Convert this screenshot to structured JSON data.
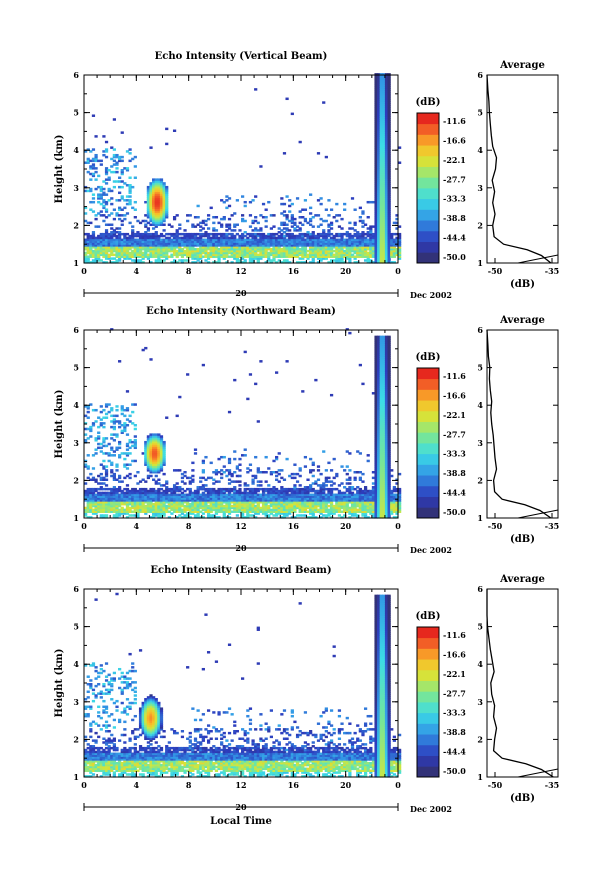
{
  "chart_data": [
    {
      "type": "heatmap",
      "title": "Echo Intensity (Vertical Beam)",
      "xlabel": "",
      "ylabel": "Height (km)",
      "xlim": [
        0,
        24
      ],
      "ylim": [
        1,
        6
      ],
      "x_ticks": [
        "0",
        "4",
        "8",
        "12",
        "16",
        "20",
        "0"
      ],
      "y_ticks": [
        "1",
        "2",
        "3",
        "4",
        "5",
        "6"
      ],
      "date_axis": {
        "label": "20",
        "month": "Dec 2002"
      },
      "colorbar": {
        "title": "(dB)",
        "levels": [
          "-11.6",
          "-16.6",
          "-22.1",
          "-27.7",
          "-33.3",
          "-38.8",
          "-44.4",
          "-50.0"
        ],
        "range": [
          -50.0,
          -11.6
        ]
      },
      "features": [
        {
          "desc": "low-level layer",
          "height_range": [
            1.2,
            1.8
          ],
          "time_range": [
            0,
            24
          ],
          "value": -30
        },
        {
          "desc": "strong echo",
          "time": 5.5,
          "height_range": [
            2.2,
            3.0
          ],
          "value": -12
        },
        {
          "desc": "tall column",
          "time": 22.7,
          "height_range": [
            1.0,
            6.0
          ],
          "value": -20
        }
      ],
      "profile": {
        "title": "Average",
        "xlabel": "(dB)",
        "x_ticks": [
          "-50",
          "-35"
        ],
        "xlim": [
          -50,
          -35
        ],
        "ylim": [
          1,
          6
        ],
        "heights": [
          1.0,
          1.2,
          1.35,
          1.5,
          1.7,
          2.0,
          2.3,
          2.6,
          2.9,
          3.2,
          3.5,
          3.8,
          4.1,
          4.4,
          4.7,
          5.0,
          5.3,
          5.6,
          6.0
        ],
        "values": [
          -36.5,
          -38.5,
          -41.5,
          -46.5,
          -48.5,
          -48.8,
          -48.3,
          -48.8,
          -48.4,
          -48.9,
          -48.2,
          -48.0,
          -48.8,
          -49.1,
          -49.3,
          -49.5,
          -49.6,
          -49.8,
          -50.0
        ]
      }
    },
    {
      "type": "heatmap",
      "title": "Echo Intensity (Northward Beam)",
      "xlabel": "",
      "ylabel": "Height (km)",
      "xlim": [
        0,
        24
      ],
      "ylim": [
        1,
        6
      ],
      "x_ticks": [
        "0",
        "4",
        "8",
        "12",
        "16",
        "20",
        "0"
      ],
      "y_ticks": [
        "1",
        "2",
        "3",
        "4",
        "5",
        "6"
      ],
      "date_axis": {
        "label": "20",
        "month": "Dec 2002"
      },
      "colorbar": {
        "title": "(dB)",
        "levels": [
          "-11.6",
          "-16.6",
          "-22.1",
          "-27.7",
          "-33.3",
          "-38.8",
          "-44.4",
          "-50.0"
        ],
        "range": [
          -50.0,
          -11.6
        ]
      },
      "features": [
        {
          "desc": "low-level layer",
          "height_range": [
            1.2,
            1.8
          ],
          "time_range": [
            0,
            24
          ],
          "value": -30
        },
        {
          "desc": "strong echo",
          "time": 5.3,
          "height_range": [
            2.4,
            3.0
          ],
          "value": -14
        },
        {
          "desc": "tall column",
          "time": 22.7,
          "height_range": [
            1.0,
            5.8
          ],
          "value": -20
        }
      ],
      "profile": {
        "title": "Average",
        "xlabel": "(dB)",
        "x_ticks": [
          "-50",
          "-35"
        ],
        "xlim": [
          -50,
          -35
        ],
        "ylim": [
          1,
          6
        ],
        "heights": [
          1.0,
          1.2,
          1.35,
          1.5,
          1.7,
          2.0,
          2.3,
          2.6,
          2.9,
          3.2,
          3.5,
          3.8,
          4.1,
          4.4,
          4.7,
          5.0,
          5.3,
          5.6,
          6.0
        ],
        "values": [
          -36.5,
          -38.8,
          -42.0,
          -46.8,
          -48.4,
          -48.6,
          -48.0,
          -48.3,
          -48.5,
          -48.7,
          -49.0,
          -49.2,
          -49.0,
          -49.3,
          -49.5,
          -49.4,
          -49.7,
          -49.8,
          -50.0
        ]
      }
    },
    {
      "type": "heatmap",
      "title": "Echo Intensity (Eastward Beam)",
      "xlabel": "Local Time",
      "ylabel": "Height (km)",
      "xlim": [
        0,
        24
      ],
      "ylim": [
        1,
        6
      ],
      "x_ticks": [
        "0",
        "4",
        "8",
        "12",
        "16",
        "20",
        "0"
      ],
      "y_ticks": [
        "1",
        "2",
        "3",
        "4",
        "5",
        "6"
      ],
      "date_axis": {
        "label": "20",
        "month": "Dec 2002"
      },
      "colorbar": {
        "title": "(dB)",
        "levels": [
          "-11.6",
          "-16.6",
          "-22.1",
          "-27.7",
          "-33.3",
          "-38.8",
          "-44.4",
          "-50.0"
        ],
        "range": [
          -50.0,
          -11.6
        ]
      },
      "features": [
        {
          "desc": "low-level layer",
          "height_range": [
            1.2,
            1.8
          ],
          "time_range": [
            0,
            24
          ],
          "value": -30
        },
        {
          "desc": "strong echo",
          "time": 5.0,
          "height_range": [
            2.2,
            2.9
          ],
          "value": -17
        },
        {
          "desc": "tall column",
          "time": 22.7,
          "height_range": [
            1.0,
            5.8
          ],
          "value": -20
        }
      ],
      "profile": {
        "title": "Average",
        "xlabel": "(dB)",
        "x_ticks": [
          "-50",
          "-35"
        ],
        "xlim": [
          -50,
          -35
        ],
        "ylim": [
          1,
          6
        ],
        "heights": [
          1.0,
          1.2,
          1.35,
          1.5,
          1.7,
          2.0,
          2.3,
          2.6,
          2.9,
          3.2,
          3.5,
          3.8,
          4.1,
          4.4,
          4.7,
          5.0,
          5.3,
          5.6,
          6.0
        ],
        "values": [
          -36.0,
          -38.5,
          -41.8,
          -46.8,
          -48.6,
          -48.4,
          -48.0,
          -48.6,
          -48.4,
          -49.0,
          -49.2,
          -48.5,
          -48.9,
          -49.3,
          -49.6,
          -49.9,
          -50.0,
          -50.0,
          -50.0
        ]
      }
    }
  ]
}
